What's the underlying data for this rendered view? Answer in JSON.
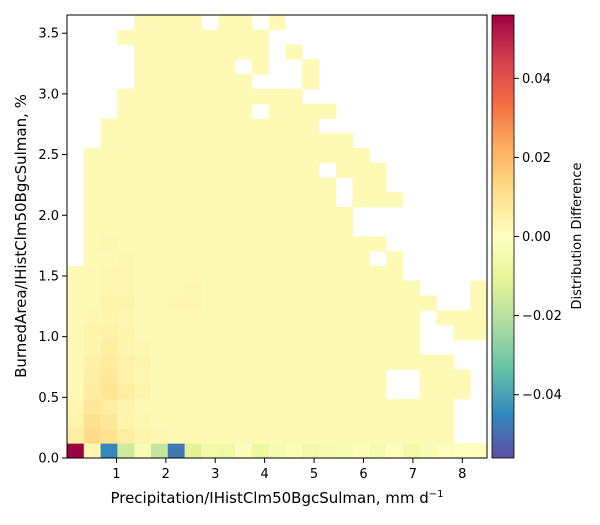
{
  "chart_data": {
    "type": "heatmap",
    "xlabel_main": "Precipitation/IHistClm50BgcSulman,  mm d",
    "xlabel_sup": "−1",
    "ylabel": "BurnedArea/IHistClm50BgcSulman,  %",
    "colorbar_label": "Distribution Difference",
    "colormap": "Spectral_r",
    "x_bins": {
      "start": 0.0,
      "end": 8.5,
      "count": 25
    },
    "y_bins": {
      "start": 0.0,
      "end": 3.65,
      "count": 30
    },
    "xlim": [
      0.0,
      8.5
    ],
    "ylim": [
      0.0,
      3.65
    ],
    "clim": [
      -0.056,
      0.056
    ],
    "x_ticks": [
      1,
      2,
      3,
      4,
      5,
      6,
      7,
      8
    ],
    "x_tick_labels": [
      "1",
      "2",
      "3",
      "4",
      "5",
      "6",
      "7",
      "8"
    ],
    "y_ticks": [
      0.0,
      0.5,
      1.0,
      1.5,
      2.0,
      2.5,
      3.0,
      3.5
    ],
    "y_tick_labels": [
      "0.0",
      "0.5",
      "1.0",
      "1.5",
      "2.0",
      "2.5",
      "3.0",
      "3.5"
    ],
    "colorbar_ticks": [
      -0.04,
      -0.02,
      0.0,
      0.02,
      0.04
    ],
    "colorbar_tick_labels": [
      "−0.04",
      "−0.02",
      "0.00",
      "0.02",
      "0.04"
    ],
    "row_extents": [
      [
        0,
        24
      ],
      [
        0,
        24
      ],
      [
        0,
        24
      ],
      [
        0,
        24
      ],
      [
        0,
        23
      ],
      [
        0,
        23
      ],
      [
        0,
        22
      ],
      [
        0,
        22
      ],
      [
        0,
        24
      ],
      [
        0,
        24
      ],
      [
        0,
        24
      ],
      [
        0,
        24
      ],
      [
        0,
        20
      ],
      [
        1,
        19
      ],
      [
        1,
        19
      ],
      [
        1,
        19
      ],
      [
        1,
        19
      ],
      [
        1,
        19
      ],
      [
        1,
        18
      ],
      [
        1,
        18
      ],
      [
        1,
        17
      ],
      [
        2,
        16
      ],
      [
        2,
        15
      ],
      [
        3,
        15
      ],
      [
        3,
        14
      ],
      [
        4,
        14
      ],
      [
        4,
        14
      ],
      [
        4,
        13
      ],
      [
        3,
        13
      ],
      [
        4,
        13
      ]
    ],
    "empty_cells": [
      [
        1,
        23
      ],
      [
        1,
        24
      ],
      [
        2,
        23
      ],
      [
        2,
        24
      ],
      [
        3,
        23
      ],
      [
        3,
        24
      ],
      [
        4,
        19
      ],
      [
        4,
        20
      ],
      [
        5,
        19
      ],
      [
        5,
        20
      ],
      [
        7,
        21
      ],
      [
        7,
        22
      ],
      [
        8,
        21
      ],
      [
        8,
        22
      ],
      [
        9,
        21
      ],
      [
        10,
        22
      ],
      [
        10,
        23
      ],
      [
        11,
        21
      ],
      [
        11,
        22
      ],
      [
        11,
        23
      ],
      [
        12,
        20
      ],
      [
        13,
        18
      ],
      [
        14,
        19
      ],
      [
        15,
        17
      ],
      [
        15,
        18
      ],
      [
        15,
        19
      ],
      [
        16,
        17
      ],
      [
        16,
        18
      ],
      [
        16,
        19
      ],
      [
        17,
        16
      ],
      [
        18,
        16
      ],
      [
        19,
        15
      ],
      [
        22,
        15
      ],
      [
        23,
        11
      ],
      [
        24,
        14
      ],
      [
        25,
        11
      ],
      [
        25,
        12
      ],
      [
        25,
        13
      ],
      [
        26,
        10
      ],
      [
        26,
        12
      ],
      [
        26,
        13
      ],
      [
        27,
        12
      ],
      [
        28,
        12
      ],
      [
        28,
        13
      ],
      [
        29,
        13
      ],
      [
        29,
        8
      ],
      [
        29,
        11
      ],
      [
        23,
        17
      ],
      [
        24,
        17
      ],
      [
        25,
        17
      ]
    ],
    "background_value": 0.002,
    "cells": [
      [
        0,
        0,
        0.056
      ],
      [
        0,
        1,
        0.003
      ],
      [
        0,
        2,
        -0.045
      ],
      [
        0,
        3,
        -0.016
      ],
      [
        0,
        4,
        -0.003
      ],
      [
        0,
        5,
        -0.018
      ],
      [
        0,
        6,
        -0.048
      ],
      [
        0,
        7,
        -0.012
      ],
      [
        0,
        8,
        -0.006
      ],
      [
        0,
        9,
        -0.007
      ],
      [
        0,
        10,
        -0.002
      ],
      [
        0,
        11,
        -0.008
      ],
      [
        0,
        12,
        -0.004
      ],
      [
        0,
        13,
        -0.002
      ],
      [
        0,
        14,
        -0.006
      ],
      [
        0,
        15,
        -0.004
      ],
      [
        0,
        16,
        -0.003
      ],
      [
        0,
        17,
        -0.002
      ],
      [
        0,
        18,
        -0.004
      ],
      [
        0,
        19,
        -0.001
      ],
      [
        0,
        20,
        -0.006
      ],
      [
        0,
        21,
        -0.003
      ],
      [
        0,
        22,
        -0.001
      ],
      [
        0,
        23,
        0.0
      ],
      [
        0,
        24,
        -0.001
      ],
      [
        1,
        0,
        0.006
      ],
      [
        1,
        1,
        0.012
      ],
      [
        1,
        2,
        0.01
      ],
      [
        1,
        3,
        0.006
      ],
      [
        1,
        4,
        0.004
      ],
      [
        1,
        5,
        0.003
      ],
      [
        1,
        6,
        0.002
      ],
      [
        2,
        0,
        0.004
      ],
      [
        2,
        1,
        0.011
      ],
      [
        2,
        2,
        0.008
      ],
      [
        2,
        3,
        0.004
      ],
      [
        2,
        4,
        0.003
      ],
      [
        3,
        0,
        0.003
      ],
      [
        3,
        1,
        0.008
      ],
      [
        3,
        2,
        0.006
      ],
      [
        3,
        3,
        0.004
      ],
      [
        4,
        0,
        0.002
      ],
      [
        4,
        1,
        0.007
      ],
      [
        4,
        2,
        0.009
      ],
      [
        4,
        3,
        0.006
      ],
      [
        4,
        4,
        0.004
      ],
      [
        5,
        1,
        0.006
      ],
      [
        5,
        2,
        0.008
      ],
      [
        5,
        3,
        0.005
      ],
      [
        5,
        4,
        0.003
      ],
      [
        6,
        1,
        0.005
      ],
      [
        6,
        2,
        0.007
      ],
      [
        6,
        3,
        0.005
      ],
      [
        6,
        4,
        0.004
      ],
      [
        7,
        1,
        0.004
      ],
      [
        7,
        2,
        0.006
      ],
      [
        7,
        3,
        0.004
      ],
      [
        7,
        4,
        0.003
      ],
      [
        8,
        1,
        0.004
      ],
      [
        8,
        2,
        0.005
      ],
      [
        8,
        3,
        0.004
      ],
      [
        9,
        1,
        0.003
      ],
      [
        9,
        2,
        0.004
      ],
      [
        9,
        3,
        0.003
      ],
      [
        10,
        2,
        0.004
      ],
      [
        10,
        3,
        0.004
      ],
      [
        10,
        6,
        0.003
      ],
      [
        10,
        7,
        0.003
      ],
      [
        11,
        2,
        0.003
      ],
      [
        11,
        3,
        0.003
      ],
      [
        11,
        7,
        0.003
      ],
      [
        12,
        2,
        0.003
      ],
      [
        12,
        3,
        0.003
      ],
      [
        13,
        3,
        0.003
      ],
      [
        14,
        2,
        0.003
      ]
    ]
  }
}
